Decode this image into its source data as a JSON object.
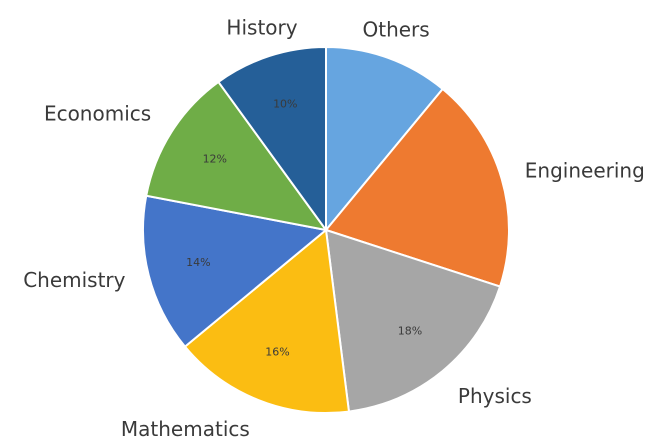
{
  "chart_data": {
    "type": "pie",
    "title": "",
    "slices": [
      {
        "label": "Others",
        "value": 11,
        "display": "",
        "color": "#66a5e0"
      },
      {
        "label": "Engineering",
        "value": 19,
        "display": "",
        "color": "#ee7a30"
      },
      {
        "label": "Physics",
        "value": 18,
        "display": "18%",
        "color": "#a6a6a6"
      },
      {
        "label": "Mathematics",
        "value": 16,
        "display": "16%",
        "color": "#fbbd12"
      },
      {
        "label": "Chemistry",
        "value": 14,
        "display": "14%",
        "color": "#4475c9"
      },
      {
        "label": "Economics",
        "value": 12,
        "display": "12%",
        "color": "#6fad47"
      },
      {
        "label": "History",
        "value": 10,
        "display": "10%",
        "color": "#255f98"
      }
    ],
    "start_angle_deg": 0,
    "direction": "clockwise",
    "legend": "none"
  }
}
